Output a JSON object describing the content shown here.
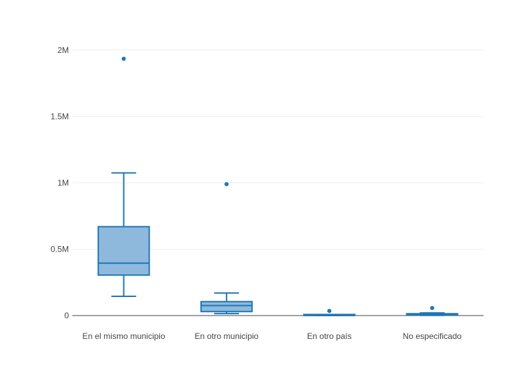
{
  "chart_data": {
    "type": "box",
    "categories": [
      "En el mismo municipio",
      "En otro municipio",
      "En otro país",
      "No especificado"
    ],
    "y_ticks": [
      {
        "value": 0,
        "label": "0"
      },
      {
        "value": 500000,
        "label": "0.5M"
      },
      {
        "value": 1000000,
        "label": "1M"
      },
      {
        "value": 1500000,
        "label": "1.5M"
      },
      {
        "value": 2000000,
        "label": "2M"
      }
    ],
    "ylim": [
      0,
      2000000
    ],
    "grid": true,
    "colors": {
      "line": "#1f77b4",
      "fill": "#8fb9dc",
      "grid": "#eeeeee",
      "axis": "#444444"
    },
    "boxes": [
      {
        "category": "En el mismo municipio",
        "min": 145000,
        "q1": 305000,
        "median": 395000,
        "q3": 670000,
        "max": 1075000,
        "outliers": [
          1935000
        ]
      },
      {
        "category": "En otro municipio",
        "min": 15000,
        "q1": 30000,
        "median": 75000,
        "q3": 105000,
        "max": 170000,
        "outliers": [
          990000
        ]
      },
      {
        "category": "En otro país",
        "min": 0,
        "q1": 500,
        "median": 1500,
        "q3": 3000,
        "max": 8000,
        "outliers": [
          35000
        ]
      },
      {
        "category": "No especificado",
        "min": 1000,
        "q1": 5000,
        "median": 9000,
        "q3": 14000,
        "max": 20000,
        "outliers": [
          57000
        ]
      }
    ]
  }
}
